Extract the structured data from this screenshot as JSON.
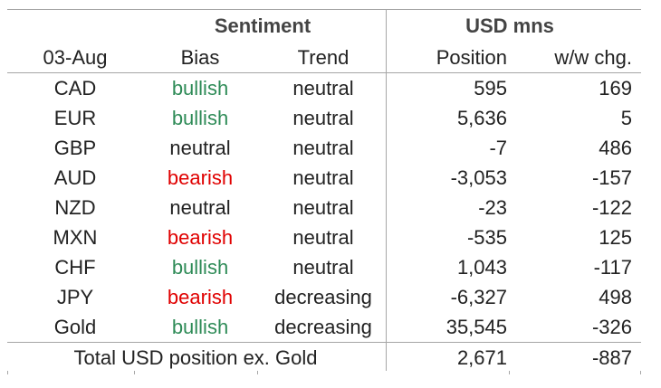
{
  "colors": {
    "bullish": "#2e8b57",
    "bearish": "#e00000",
    "neutral": "#222222"
  },
  "header": {
    "group_sentiment": "Sentiment",
    "group_usd": "USD mns",
    "col_date": "03-Aug",
    "col_bias": "Bias",
    "col_trend": "Trend",
    "col_position": "Position",
    "col_change": "w/w chg."
  },
  "rows": [
    {
      "currency": "CAD",
      "bias": "bullish",
      "trend": "neutral",
      "position": "595",
      "change": "169"
    },
    {
      "currency": "EUR",
      "bias": "bullish",
      "trend": "neutral",
      "position": "5,636",
      "change": "5"
    },
    {
      "currency": "GBP",
      "bias": "neutral",
      "trend": "neutral",
      "position": "-7",
      "change": "486"
    },
    {
      "currency": "AUD",
      "bias": "bearish",
      "trend": "neutral",
      "position": "-3,053",
      "change": "-157"
    },
    {
      "currency": "NZD",
      "bias": "neutral",
      "trend": "neutral",
      "position": "-23",
      "change": "-122"
    },
    {
      "currency": "MXN",
      "bias": "bearish",
      "trend": "neutral",
      "position": "-535",
      "change": "125"
    },
    {
      "currency": "CHF",
      "bias": "bullish",
      "trend": "neutral",
      "position": "1,043",
      "change": "-117"
    },
    {
      "currency": "JPY",
      "bias": "bearish",
      "trend": "decreasing",
      "position": "-6,327",
      "change": "498"
    },
    {
      "currency": "Gold",
      "bias": "bullish",
      "trend": "decreasing",
      "position": "35,545",
      "change": "-326"
    }
  ],
  "total": {
    "label": "Total USD position ex. Gold",
    "position": "2,671",
    "change": "-887"
  }
}
